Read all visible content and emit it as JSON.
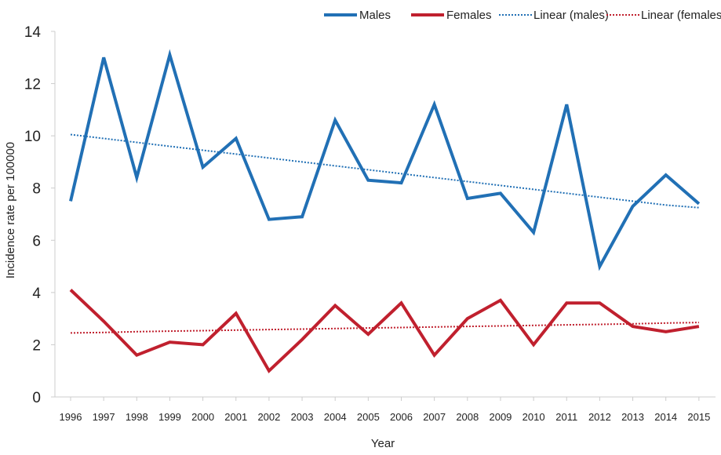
{
  "chart_data": {
    "type": "line",
    "xlabel": "Year",
    "ylabel": "Incidence rate per 100000",
    "ylim": [
      0,
      14
    ],
    "yticks": [
      "0",
      "2",
      "4",
      "6",
      "8",
      "10",
      "12",
      "14"
    ],
    "categories": [
      "1996",
      "1997",
      "1998",
      "1999",
      "2000",
      "2001",
      "2002",
      "2003",
      "2004",
      "2005",
      "2006",
      "2007",
      "2008",
      "2009",
      "2010",
      "2011",
      "2012",
      "2013",
      "2014",
      "2015"
    ],
    "series": [
      {
        "name": "Males",
        "color": "#2170b5",
        "style": "solid",
        "values": [
          7.5,
          13.0,
          8.4,
          13.1,
          8.8,
          9.9,
          6.8,
          6.9,
          10.6,
          8.3,
          8.2,
          11.2,
          7.6,
          7.8,
          6.3,
          11.2,
          5.0,
          7.3,
          8.5,
          7.4
        ]
      },
      {
        "name": "Females",
        "color": "#c0202e",
        "style": "solid",
        "values": [
          4.1,
          2.9,
          1.6,
          2.1,
          2.0,
          3.2,
          1.0,
          2.2,
          3.5,
          2.4,
          3.6,
          1.6,
          3.0,
          3.7,
          2.0,
          3.6,
          3.6,
          2.7,
          2.5,
          2.7
        ]
      },
      {
        "name": "Linear (males)",
        "color": "#2170b5",
        "style": "dotted",
        "values": [
          10.05,
          9.9,
          9.75,
          9.6,
          9.45,
          9.3,
          9.15,
          9.0,
          8.85,
          8.7,
          8.55,
          8.4,
          8.25,
          8.1,
          7.95,
          7.8,
          7.65,
          7.5,
          7.35,
          7.25
        ]
      },
      {
        "name": "Linear (females)",
        "color": "#c0202e",
        "style": "dotted",
        "values": [
          2.45,
          2.47,
          2.5,
          2.52,
          2.54,
          2.56,
          2.58,
          2.6,
          2.62,
          2.64,
          2.66,
          2.68,
          2.7,
          2.72,
          2.74,
          2.76,
          2.78,
          2.8,
          2.83,
          2.85
        ]
      }
    ],
    "grid": false,
    "legend_position": "top-right"
  }
}
